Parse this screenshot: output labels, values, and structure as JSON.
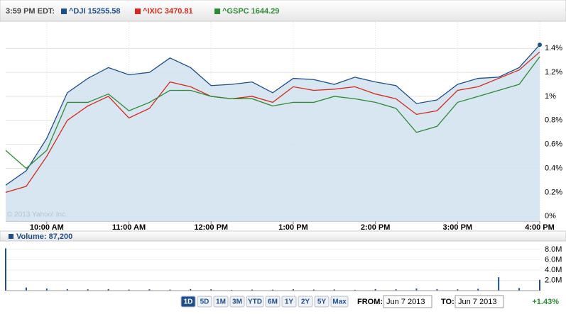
{
  "chart_data": {
    "type": "line",
    "time_label": "3:59 PM EDT:",
    "copyright": "© 2013 Yahoo! Inc.",
    "x": [
      9.5,
      9.75,
      10,
      10.25,
      10.5,
      10.75,
      11,
      11.25,
      11.5,
      11.75,
      12,
      12.25,
      12.5,
      12.75,
      13,
      13.25,
      13.5,
      13.75,
      14,
      14.25,
      14.5,
      14.75,
      15,
      15.25,
      15.5,
      15.75,
      16
    ],
    "xlim": [
      9.5,
      16
    ],
    "xticks": [
      {
        "value": 10,
        "label": "10:00 AM"
      },
      {
        "value": 11,
        "label": "11:00 AM"
      },
      {
        "value": 12,
        "label": "12:00 PM"
      },
      {
        "value": 13,
        "label": "1:00 PM"
      },
      {
        "value": 14,
        "label": "2:00 PM"
      },
      {
        "value": 15,
        "label": "3:00 PM"
      },
      {
        "value": 16,
        "label": "4:00 PM"
      }
    ],
    "ylim": [
      -0.04,
      1.62
    ],
    "yticks": [
      {
        "value": 0,
        "label": "0%"
      },
      {
        "value": 0.2,
        "label": "0.2%"
      },
      {
        "value": 0.4,
        "label": "0.4%"
      },
      {
        "value": 0.6,
        "label": "0.6%"
      },
      {
        "value": 0.8,
        "label": "0.8%"
      },
      {
        "value": 1,
        "label": "1%"
      },
      {
        "value": 1.2,
        "label": "1.2%"
      },
      {
        "value": 1.4,
        "label": "1.4%"
      }
    ],
    "grid": true,
    "series": [
      {
        "name": "^DJI 15255.58",
        "color": "#1f4e8c",
        "fill": "#d4e3ef",
        "values": [
          0.26,
          0.38,
          0.65,
          1.03,
          1.15,
          1.24,
          1.18,
          1.2,
          1.32,
          1.24,
          1.09,
          1.1,
          1.12,
          1.03,
          1.15,
          1.14,
          1.1,
          1.16,
          1.12,
          1.09,
          0.94,
          0.97,
          1.1,
          1.15,
          1.16,
          1.24,
          1.43
        ]
      },
      {
        "name": "^IXIC 3470.81",
        "color": "#d42a1a",
        "values": [
          0.2,
          0.25,
          0.5,
          0.8,
          0.92,
          1.0,
          0.82,
          0.9,
          1.12,
          1.08,
          1.0,
          0.98,
          1.0,
          0.95,
          1.08,
          1.05,
          1.06,
          1.08,
          1.02,
          0.98,
          0.85,
          0.88,
          1.05,
          1.08,
          1.15,
          1.22,
          1.37
        ]
      },
      {
        "name": "^GSPC 1644.29",
        "color": "#2e8b35",
        "values": [
          0.55,
          0.4,
          0.55,
          0.95,
          0.95,
          1.02,
          0.88,
          0.95,
          1.05,
          1.05,
          1.0,
          0.98,
          0.98,
          0.92,
          0.95,
          0.95,
          1.0,
          0.98,
          0.95,
          0.9,
          0.7,
          0.75,
          0.95,
          1.0,
          1.05,
          1.1,
          1.33
        ]
      }
    ],
    "volume": {
      "label": "Volume: 87,200",
      "color": "#1f4e8c",
      "values": [
        8200000,
        600000,
        400000,
        300000,
        250000,
        300000,
        200000,
        250000,
        200000,
        300000,
        250000,
        150000,
        200000,
        180000,
        250000,
        200000,
        220000,
        150000,
        300000,
        250000,
        400000,
        300000,
        250000,
        350000,
        2600000,
        500000,
        2100000
      ],
      "ylim": [
        0,
        9500000
      ],
      "yticks": [
        {
          "value": 2000000,
          "label": "2.0M"
        },
        {
          "value": 4000000,
          "label": "4.0M"
        },
        {
          "value": 6000000,
          "label": "6.0M"
        },
        {
          "value": 8000000,
          "label": "8.0M"
        }
      ]
    },
    "controls": {
      "ranges": [
        "1D",
        "5D",
        "1M",
        "3M",
        "YTD",
        "6M",
        "1Y",
        "2Y",
        "5Y",
        "Max"
      ],
      "selected": 0,
      "from_label": "FROM:",
      "from_value": "Jun 7 2013",
      "to_label": "TO:",
      "to_value": "Jun 7 2013",
      "change": "+1.43%"
    }
  }
}
